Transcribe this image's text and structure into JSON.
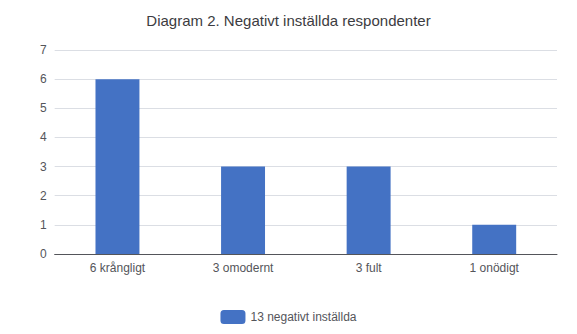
{
  "chart_data": {
    "type": "bar",
    "title": "Diagram 2. Negativt inställda respondenter",
    "categories": [
      "6 krångligt",
      "3 omodernt",
      "3 fult",
      "1 onödigt"
    ],
    "series": [
      {
        "name": "13 negativt inställda",
        "color": "#4472C4",
        "values": [
          6,
          3,
          3,
          1
        ]
      }
    ],
    "ylim": [
      0,
      7
    ],
    "yticks": [
      0,
      1,
      2,
      3,
      4,
      5,
      6,
      7
    ],
    "grid": true,
    "legend": "bottom"
  }
}
